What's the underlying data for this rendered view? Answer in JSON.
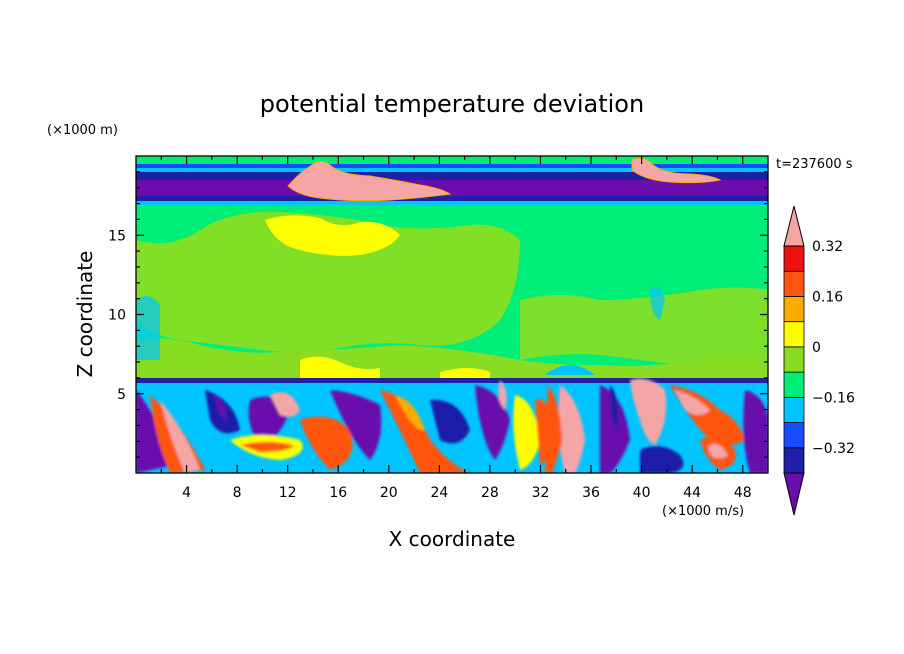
{
  "chart_data": {
    "type": "heatmap",
    "title": "potential temperature deviation",
    "xlabel": "X coordinate",
    "ylabel": "Z coordinate",
    "x_unit": "(×1000 m/s)",
    "y_unit": "(×1000 m)",
    "time_label": "t=237600 s",
    "xlim": [
      0,
      50
    ],
    "ylim": [
      0,
      20
    ],
    "x_ticks": [
      4,
      8,
      12,
      16,
      20,
      24,
      28,
      32,
      36,
      40,
      44,
      48
    ],
    "y_ticks": [
      5,
      10,
      15
    ],
    "colorbar": {
      "labels": [
        "0.32",
        "0.16",
        "0",
        "−0.16",
        "−0.32"
      ],
      "levels": [
        -0.4,
        -0.32,
        -0.24,
        -0.16,
        -0.08,
        0,
        0.08,
        0.16,
        0.24,
        0.32,
        0.4
      ],
      "colors": [
        "#6a0dad",
        "#1f1fa8",
        "#1a4cff",
        "#00c4ff",
        "#00ee77",
        "#88dd22",
        "#ffff00",
        "#ffaa00",
        "#ff5511",
        "#ee1111",
        "#f4a6a6"
      ]
    },
    "grid": false
  }
}
